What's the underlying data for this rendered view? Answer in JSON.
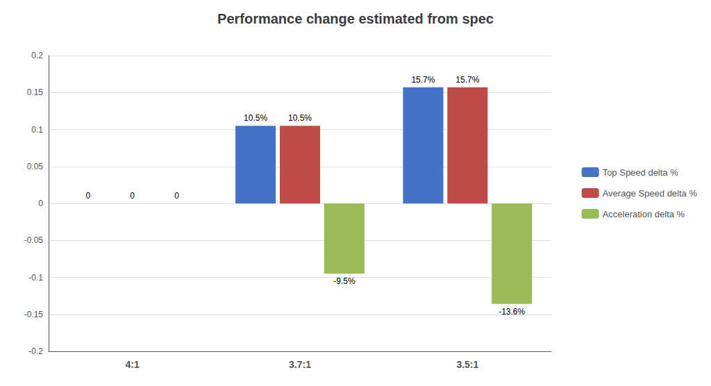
{
  "chart_data": {
    "type": "bar",
    "title": "Performance change estimated from spec",
    "categories": [
      "4:1",
      "3.7:1",
      "3.5:1"
    ],
    "series": [
      {
        "name": "Top Speed delta %",
        "color": "#4472C4",
        "values": [
          0.0,
          0.105,
          0.157
        ],
        "value_labels": [
          "0",
          "10.5%",
          "15.7%"
        ]
      },
      {
        "name": "Average Speed delta %",
        "color": "#BE4B48",
        "values": [
          0.0,
          0.105,
          0.157
        ],
        "value_labels": [
          "0",
          "10.5%",
          "15.7%"
        ]
      },
      {
        "name": "Acceleration delta %",
        "color": "#9BBB59",
        "values": [
          0.0,
          -0.095,
          -0.136
        ],
        "value_labels": [
          "0",
          "-9.5%",
          "-13.6%"
        ]
      }
    ],
    "ylim": [
      -0.2,
      0.2
    ],
    "yticks": [
      -0.2,
      -0.15,
      -0.1,
      -0.05,
      0,
      0.05,
      0.1,
      0.15,
      0.2
    ],
    "grid": true,
    "legend": "right"
  }
}
